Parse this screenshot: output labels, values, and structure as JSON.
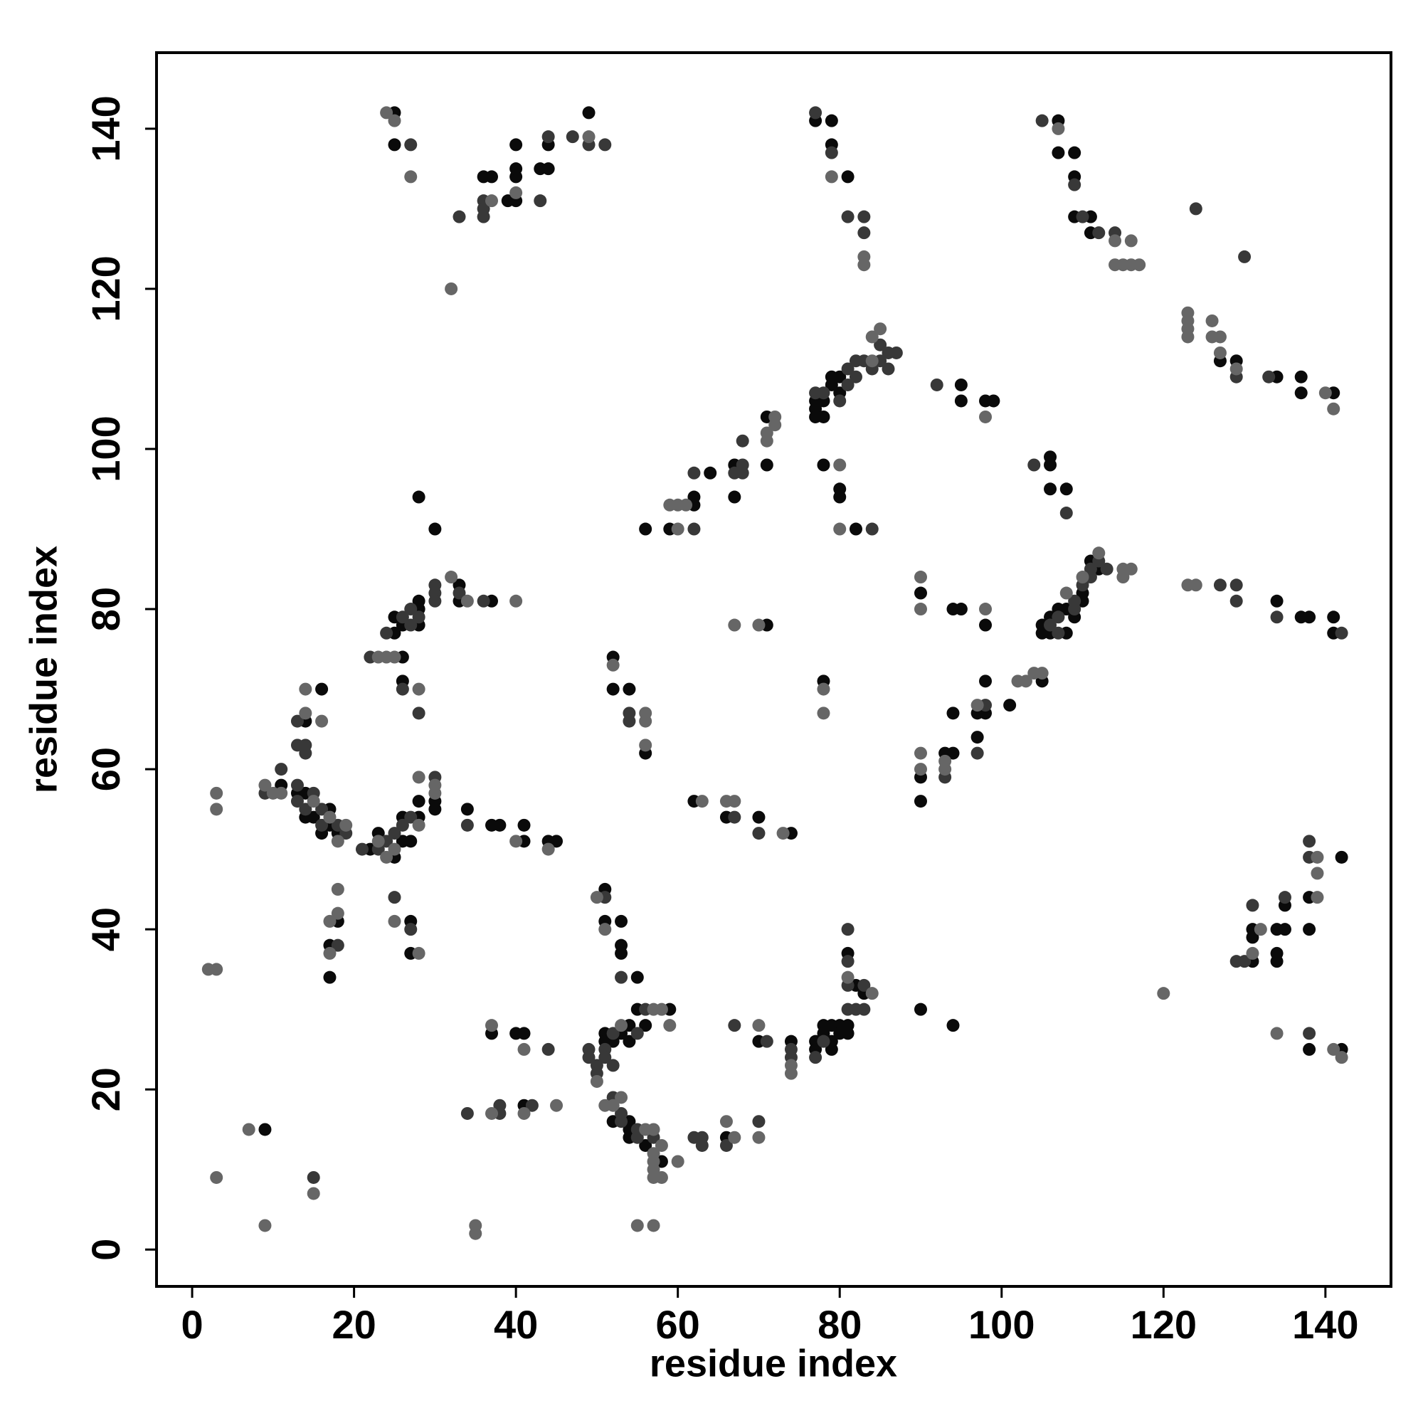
{
  "chart_data": {
    "type": "scatter",
    "xlabel": "residue index",
    "ylabel": "residue index",
    "xlim": [
      -4.4,
      148.1
    ],
    "ylim": [
      -4.6,
      149.5
    ],
    "xticks": [
      0,
      20,
      40,
      60,
      80,
      100,
      120,
      140
    ],
    "yticks": [
      0,
      20,
      40,
      60,
      80,
      100,
      120,
      140
    ],
    "series": [
      {
        "color": "#0a0a0a",
        "x": [
          25,
          25,
          36,
          37,
          39,
          40,
          40,
          40,
          40,
          43,
          44,
          44,
          49,
          77,
          79,
          79,
          81,
          107,
          107,
          109,
          109,
          109,
          111,
          111,
          127,
          129,
          134,
          137,
          137,
          141,
          56,
          59,
          62,
          62,
          64,
          67,
          67,
          71,
          71,
          77,
          77,
          77,
          78,
          78,
          79,
          79,
          80,
          80,
          78,
          80,
          80,
          82,
          95,
          95,
          98,
          99,
          106,
          106,
          106,
          108,
          28,
          30,
          26,
          25,
          25,
          26,
          28,
          28,
          28,
          26,
          33,
          33,
          37,
          14,
          16,
          11,
          13,
          14,
          14,
          15,
          16,
          17,
          17,
          18,
          22,
          23,
          25,
          26,
          26,
          27,
          28,
          28,
          30,
          30,
          34,
          37,
          38,
          41,
          41,
          44,
          45,
          18,
          17,
          17,
          27,
          27,
          9,
          37,
          40,
          41,
          41,
          51,
          51,
          53,
          53,
          53,
          55,
          51,
          51,
          52,
          53,
          54,
          54,
          55,
          56,
          59,
          52,
          54,
          54,
          54,
          56,
          58,
          66,
          52,
          52,
          54,
          56,
          62,
          66,
          70,
          74,
          71,
          70,
          74,
          77,
          77,
          78,
          78,
          79,
          79,
          79,
          80,
          80,
          81,
          81,
          81,
          82,
          83,
          90,
          94,
          78,
          90,
          90,
          90,
          94,
          95,
          98,
          93,
          94,
          94,
          97,
          98,
          97,
          98,
          101,
          105,
          105,
          105,
          106,
          106,
          107,
          108,
          108,
          109,
          110,
          110,
          111,
          112,
          134,
          137,
          138,
          141,
          141,
          131,
          131,
          131,
          134,
          134,
          134,
          135,
          135,
          138,
          138,
          142,
          138,
          142
        ],
        "values": [
          142,
          138,
          134,
          134,
          131,
          131,
          134,
          135,
          138,
          135,
          135,
          138,
          142,
          141,
          141,
          138,
          134,
          141,
          137,
          137,
          134,
          129,
          129,
          127,
          111,
          111,
          109,
          109,
          107,
          107,
          90,
          90,
          93,
          94,
          97,
          94,
          98,
          98,
          104,
          106,
          105,
          104,
          104,
          106,
          108,
          109,
          109,
          107,
          98,
          95,
          94,
          90,
          108,
          106,
          106,
          106,
          99,
          98,
          95,
          95,
          94,
          90,
          74,
          77,
          79,
          78,
          80,
          81,
          78,
          71,
          83,
          81,
          81,
          66,
          70,
          58,
          57,
          57,
          54,
          54,
          52,
          55,
          53,
          52,
          50,
          52,
          49,
          51,
          54,
          51,
          54,
          56,
          55,
          56,
          55,
          53,
          53,
          51,
          53,
          51,
          51,
          41,
          38,
          34,
          41,
          37,
          15,
          27,
          27,
          27,
          18,
          45,
          41,
          41,
          38,
          37,
          34,
          27,
          26,
          26,
          27,
          26,
          28,
          30,
          28,
          30,
          16,
          16,
          15,
          14,
          13,
          11,
          14,
          74,
          70,
          70,
          62,
          56,
          54,
          54,
          52,
          78,
          26,
          26,
          26,
          25,
          28,
          27,
          28,
          25,
          26,
          28,
          27,
          28,
          27,
          37,
          33,
          32,
          30,
          28,
          71,
          82,
          59,
          56,
          80,
          80,
          78,
          62,
          62,
          67,
          67,
          67,
          64,
          71,
          68,
          71,
          78,
          77,
          77,
          79,
          80,
          80,
          77,
          79,
          81,
          82,
          86,
          85,
          81,
          79,
          79,
          79,
          77,
          36,
          39,
          40,
          36,
          37,
          40,
          40,
          43,
          40,
          44,
          49,
          25,
          25
        ]
      },
      {
        "color": "#383838",
        "x": [
          27,
          33,
          36,
          36,
          36,
          43,
          44,
          47,
          49,
          51,
          77,
          79,
          81,
          83,
          83,
          105,
          109,
          110,
          112,
          114,
          124,
          130,
          129,
          133,
          62,
          62,
          67,
          68,
          68,
          68,
          77,
          78,
          80,
          81,
          81,
          82,
          82,
          83,
          84,
          85,
          85,
          86,
          86,
          87,
          84,
          92,
          104,
          108,
          22,
          24,
          26,
          27,
          27,
          28,
          26,
          28,
          30,
          30,
          30,
          33,
          36,
          13,
          13,
          14,
          14,
          11,
          9,
          13,
          13,
          14,
          15,
          16,
          16,
          18,
          19,
          21,
          23,
          24,
          25,
          26,
          27,
          30,
          34,
          18,
          25,
          27,
          15,
          44,
          34,
          38,
          38,
          42,
          51,
          53,
          49,
          49,
          50,
          50,
          51,
          51,
          52,
          52,
          55,
          56,
          52,
          53,
          53,
          55,
          55,
          57,
          62,
          63,
          63,
          66,
          70,
          54,
          54,
          67,
          70,
          67,
          71,
          74,
          74,
          77,
          78,
          81,
          81,
          81,
          81,
          82,
          83,
          83,
          98,
          97,
          93,
          106,
          107,
          107,
          109,
          109,
          110,
          111,
          111,
          112,
          113,
          127,
          129,
          129,
          134,
          142,
          129,
          130,
          131,
          135,
          138,
          138,
          138
        ],
        "values": [
          138,
          129,
          131,
          130,
          129,
          131,
          139,
          139,
          138,
          138,
          142,
          137,
          129,
          129,
          127,
          141,
          133,
          129,
          127,
          127,
          130,
          124,
          109,
          109,
          97,
          90,
          97,
          98,
          97,
          101,
          107,
          107,
          106,
          108,
          110,
          111,
          109,
          111,
          110,
          113,
          111,
          112,
          110,
          112,
          90,
          108,
          98,
          92,
          74,
          77,
          79,
          78,
          80,
          79,
          70,
          67,
          82,
          83,
          81,
          82,
          81,
          66,
          63,
          63,
          62,
          60,
          57,
          58,
          56,
          55,
          57,
          55,
          53,
          53,
          52,
          50,
          50,
          51,
          52,
          53,
          54,
          59,
          53,
          38,
          44,
          40,
          9,
          25,
          17,
          17,
          18,
          18,
          44,
          34,
          25,
          24,
          23,
          22,
          25,
          24,
          27,
          23,
          27,
          30,
          19,
          17,
          16,
          15,
          14,
          14,
          14,
          14,
          13,
          13,
          16,
          67,
          66,
          54,
          52,
          28,
          26,
          25,
          24,
          24,
          26,
          30,
          33,
          36,
          40,
          30,
          33,
          30,
          68,
          62,
          59,
          78,
          77,
          79,
          80,
          81,
          83,
          85,
          84,
          86,
          85,
          83,
          83,
          81,
          79,
          77,
          36,
          36,
          43,
          44,
          49,
          51,
          27
        ]
      },
      {
        "color": "#666666",
        "x": [
          24,
          25,
          27,
          37,
          40,
          49,
          32,
          79,
          83,
          83,
          107,
          114,
          116,
          114,
          115,
          116,
          117,
          123,
          123,
          123,
          123,
          126,
          126,
          127,
          127,
          129,
          140,
          141,
          59,
          60,
          60,
          61,
          71,
          71,
          72,
          72,
          84,
          84,
          85,
          80,
          80,
          98,
          23,
          24,
          25,
          28,
          32,
          34,
          40,
          14,
          14,
          16,
          9,
          10,
          11,
          15,
          17,
          18,
          19,
          23,
          24,
          25,
          28,
          28,
          30,
          30,
          40,
          44,
          3,
          3,
          18,
          17,
          18,
          17,
          25,
          28,
          2,
          3,
          7,
          3,
          15,
          9,
          35,
          35,
          37,
          41,
          37,
          41,
          45,
          50,
          51,
          50,
          53,
          57,
          58,
          59,
          51,
          52,
          53,
          56,
          57,
          57,
          57,
          57,
          57,
          58,
          58,
          60,
          66,
          67,
          70,
          55,
          57,
          52,
          56,
          56,
          56,
          63,
          66,
          67,
          73,
          67,
          70,
          70,
          74,
          74,
          81,
          84,
          78,
          78,
          90,
          90,
          90,
          90,
          98,
          93,
          93,
          97,
          102,
          103,
          104,
          105,
          108,
          110,
          112,
          115,
          116,
          115,
          123,
          124,
          120,
          131,
          132,
          139,
          139,
          139,
          134,
          141,
          142
        ],
        "values": [
          142,
          141,
          134,
          131,
          132,
          139,
          120,
          134,
          124,
          123,
          140,
          126,
          126,
          123,
          123,
          123,
          123,
          117,
          116,
          115,
          114,
          116,
          114,
          114,
          112,
          110,
          107,
          105,
          93,
          93,
          90,
          93,
          101,
          102,
          104,
          103,
          114,
          111,
          115,
          98,
          90,
          104,
          74,
          74,
          74,
          70,
          84,
          81,
          81,
          70,
          67,
          66,
          58,
          57,
          57,
          56,
          54,
          51,
          53,
          51,
          49,
          50,
          53,
          59,
          57,
          58,
          51,
          50,
          57,
          55,
          45,
          41,
          42,
          37,
          41,
          37,
          35,
          35,
          15,
          9,
          7,
          3,
          3,
          2,
          28,
          25,
          17,
          17,
          18,
          44,
          40,
          21,
          28,
          30,
          30,
          28,
          18,
          18,
          19,
          15,
          15,
          12,
          11,
          10,
          9,
          13,
          9,
          11,
          16,
          14,
          14,
          3,
          3,
          73,
          67,
          66,
          63,
          56,
          56,
          56,
          52,
          78,
          78,
          28,
          23,
          22,
          34,
          32,
          70,
          67,
          84,
          80,
          62,
          60,
          80,
          61,
          60,
          68,
          71,
          71,
          72,
          72,
          82,
          84,
          87,
          85,
          85,
          84,
          83,
          83,
          32,
          37,
          40,
          44,
          49,
          47,
          27,
          25,
          24
        ]
      }
    ]
  }
}
